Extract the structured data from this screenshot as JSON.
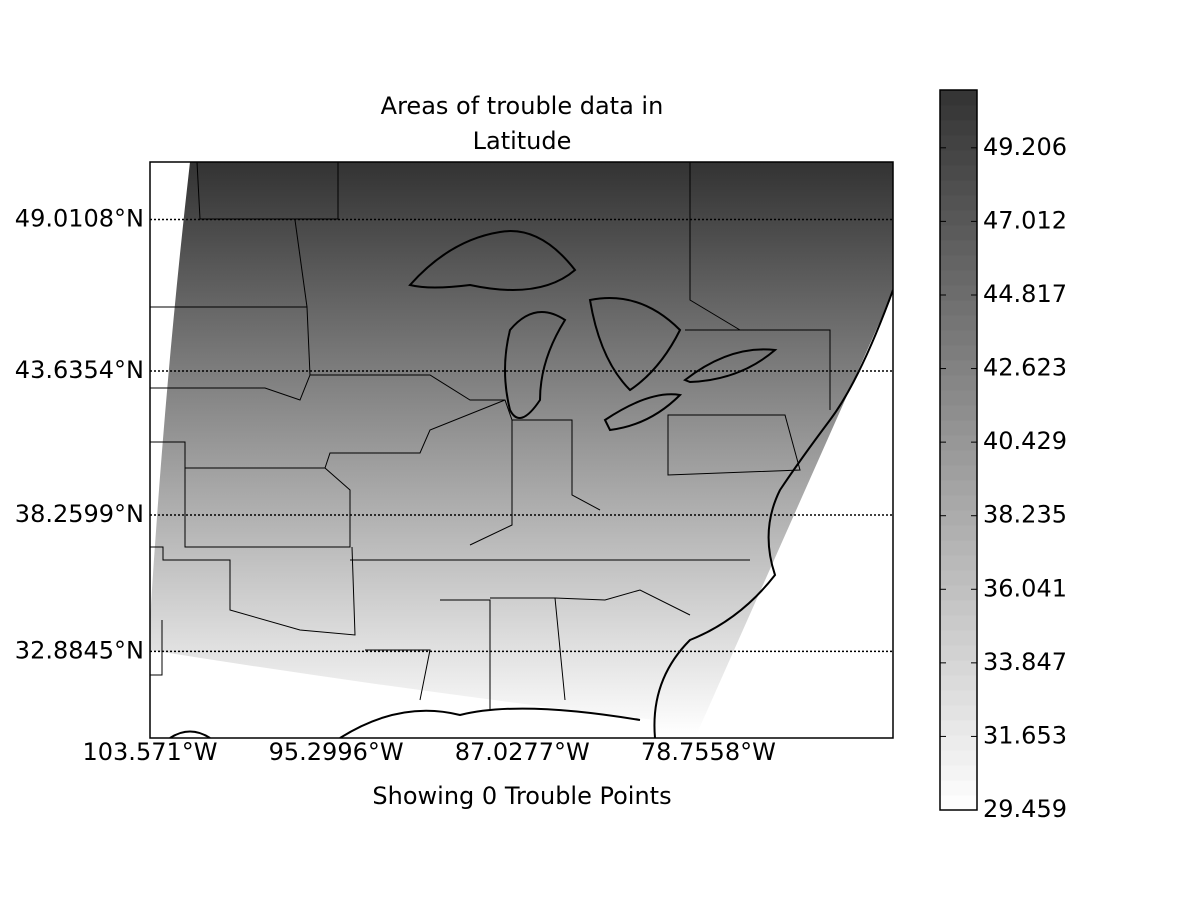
{
  "chart_data": {
    "type": "map",
    "title": [
      "Areas of trouble data in",
      "Latitude"
    ],
    "xlabel": "Showing 0 Trouble Points",
    "xticks": [
      {
        "value": -103.571,
        "label": "103.571°W"
      },
      {
        "value": -95.2996,
        "label": "95.2996°W"
      },
      {
        "value": -87.0277,
        "label": "87.0277°W"
      },
      {
        "value": -78.7558,
        "label": "78.7558°W"
      }
    ],
    "yticks": [
      {
        "value": 49.0108,
        "label": "49.0108°N"
      },
      {
        "value": 43.6354,
        "label": "43.6354°N"
      },
      {
        "value": 38.2599,
        "label": "38.2599°N"
      },
      {
        "value": 32.8845,
        "label": "32.8845°N"
      }
    ],
    "colorbar": {
      "lim": [
        29.459,
        50.93
      ],
      "ticks": [
        29.459,
        31.653,
        33.847,
        36.041,
        38.235,
        40.429,
        42.623,
        44.817,
        47.012,
        49.206
      ],
      "colors": [
        "#ffffff",
        "#333333"
      ]
    }
  }
}
